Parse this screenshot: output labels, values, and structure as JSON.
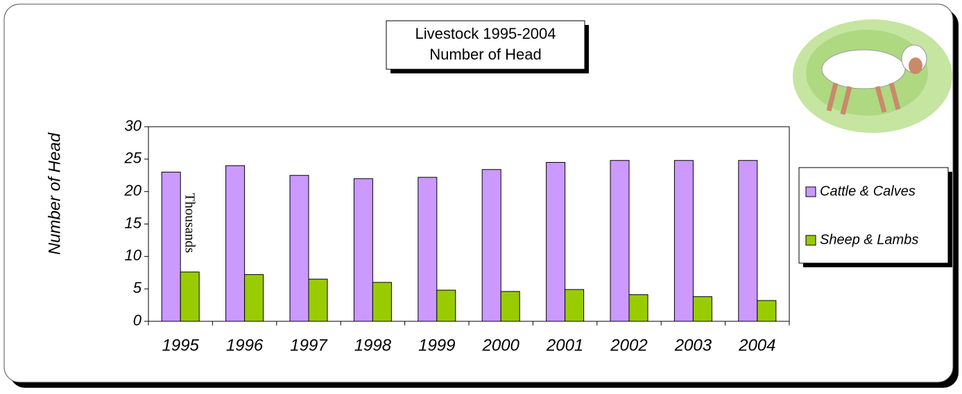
{
  "chart_data": {
    "type": "bar",
    "title": "Livestock 1995-2004",
    "subtitle": "Number of Head",
    "y_label": "Number of Head",
    "annotation": "Thousands",
    "categories": [
      "1995",
      "1996",
      "1997",
      "1998",
      "1999",
      "2000",
      "2001",
      "2002",
      "2003",
      "2004"
    ],
    "series": [
      {
        "name": "Cattle & Calves",
        "color": "#cc99ff",
        "values": [
          23,
          24,
          22.5,
          22,
          22.2,
          23.4,
          24.5,
          24.8,
          24.8,
          24.8
        ]
      },
      {
        "name": "Sheep & Lambs",
        "color": "#99cc00",
        "values": [
          7.6,
          7.2,
          6.5,
          6,
          4.8,
          4.6,
          4.9,
          4.1,
          3.8,
          3.2
        ]
      }
    ],
    "ylim": [
      0,
      30
    ],
    "yticks": [
      0,
      5,
      10,
      15,
      20,
      25,
      30
    ],
    "grid": false,
    "legend": "right"
  }
}
